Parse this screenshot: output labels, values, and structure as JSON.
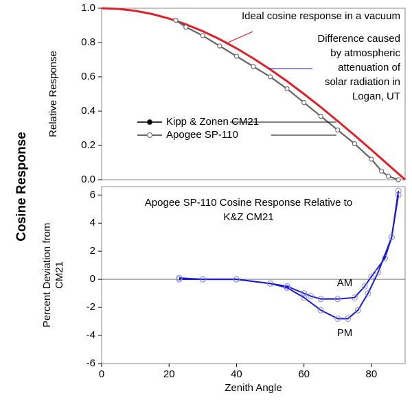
{
  "title": "Cosine Response",
  "chart_data": [
    {
      "type": "line",
      "y_label": "Relative Response",
      "xlim": [
        0,
        90
      ],
      "ylim": [
        0,
        1
      ],
      "yticks": [
        {
          "value": 0,
          "label": "0.0"
        },
        0.2,
        0.4,
        0.6,
        0.8,
        {
          "value": 1,
          "label": "1.0"
        }
      ],
      "annotations": [
        [
          "Ideal cosine response in a vacuum"
        ],
        [
          "Difference caused",
          "by atmospheric",
          "attenuation of",
          "solar radiation in",
          "Logan, UT"
        ]
      ],
      "annotation_colors": [
        "#e8141b",
        "#1a14d6"
      ],
      "legend": "center-left",
      "series": [
        {
          "name": "Ideal",
          "color": "#e02028",
          "marker": "none",
          "x": [
            0,
            5,
            10,
            15,
            20,
            25,
            30,
            35,
            40,
            45,
            50,
            55,
            60,
            65,
            70,
            75,
            80,
            85,
            90
          ],
          "values": [
            1,
            0.996,
            0.985,
            0.966,
            0.94,
            0.906,
            0.866,
            0.819,
            0.766,
            0.707,
            0.643,
            0.574,
            0.5,
            0.423,
            0.342,
            0.259,
            0.174,
            0.087,
            0
          ]
        },
        {
          "name": "Kipp & Zonen CM21",
          "color": "#333333",
          "marker": "filled",
          "x": [
            22,
            25,
            30,
            35,
            40,
            45,
            50,
            55,
            60,
            65,
            70,
            75,
            80,
            83,
            85,
            88
          ],
          "values": [
            0.93,
            0.89,
            0.84,
            0.78,
            0.72,
            0.66,
            0.6,
            0.53,
            0.45,
            0.37,
            0.29,
            0.21,
            0.12,
            0.05,
            0.02,
            0
          ]
        },
        {
          "name": "Apogee SP-110",
          "color": "#666666",
          "marker": "open",
          "x": [
            22,
            25,
            30,
            35,
            40,
            45,
            50,
            55,
            60,
            65,
            70,
            75,
            80,
            83,
            85,
            88
          ],
          "values": [
            0.93,
            0.89,
            0.84,
            0.78,
            0.72,
            0.66,
            0.6,
            0.53,
            0.45,
            0.37,
            0.29,
            0.21,
            0.12,
            0.05,
            0.02,
            0
          ]
        }
      ]
    },
    {
      "type": "line",
      "title": [
        "Apogee SP-110 Cosine Response Relative to",
        "K&Z CM21"
      ],
      "x_label": "Zenith Angle",
      "y_label": [
        "Percent Deviation from",
        "CM21"
      ],
      "xlim": [
        0,
        90
      ],
      "xticks": [
        0,
        20,
        40,
        60,
        80
      ],
      "ylim": [
        -6,
        6.6
      ],
      "yticks": [
        -6,
        -4,
        -2,
        0,
        2,
        4,
        6
      ],
      "series": [
        {
          "name": "AM",
          "color": "#1a1ad0",
          "x": [
            23,
            30,
            40,
            50,
            55,
            60,
            62,
            65,
            70,
            75,
            78,
            80,
            84,
            86,
            88
          ],
          "values": [
            0,
            0,
            0,
            -0.3,
            -0.5,
            -1,
            -1.2,
            -1.4,
            -1.4,
            -1.3,
            -0.5,
            0.2,
            1.5,
            3,
            6
          ]
        },
        {
          "name": "PM",
          "color": "#1a1ad0",
          "x": [
            23,
            30,
            40,
            50,
            55,
            60,
            65,
            70,
            73,
            76,
            79,
            82,
            86,
            88
          ],
          "values": [
            0.1,
            0,
            0,
            -0.3,
            -0.6,
            -1.3,
            -2.2,
            -2.8,
            -2.8,
            -2.2,
            -1,
            0.5,
            3,
            6.3
          ]
        }
      ]
    }
  ]
}
